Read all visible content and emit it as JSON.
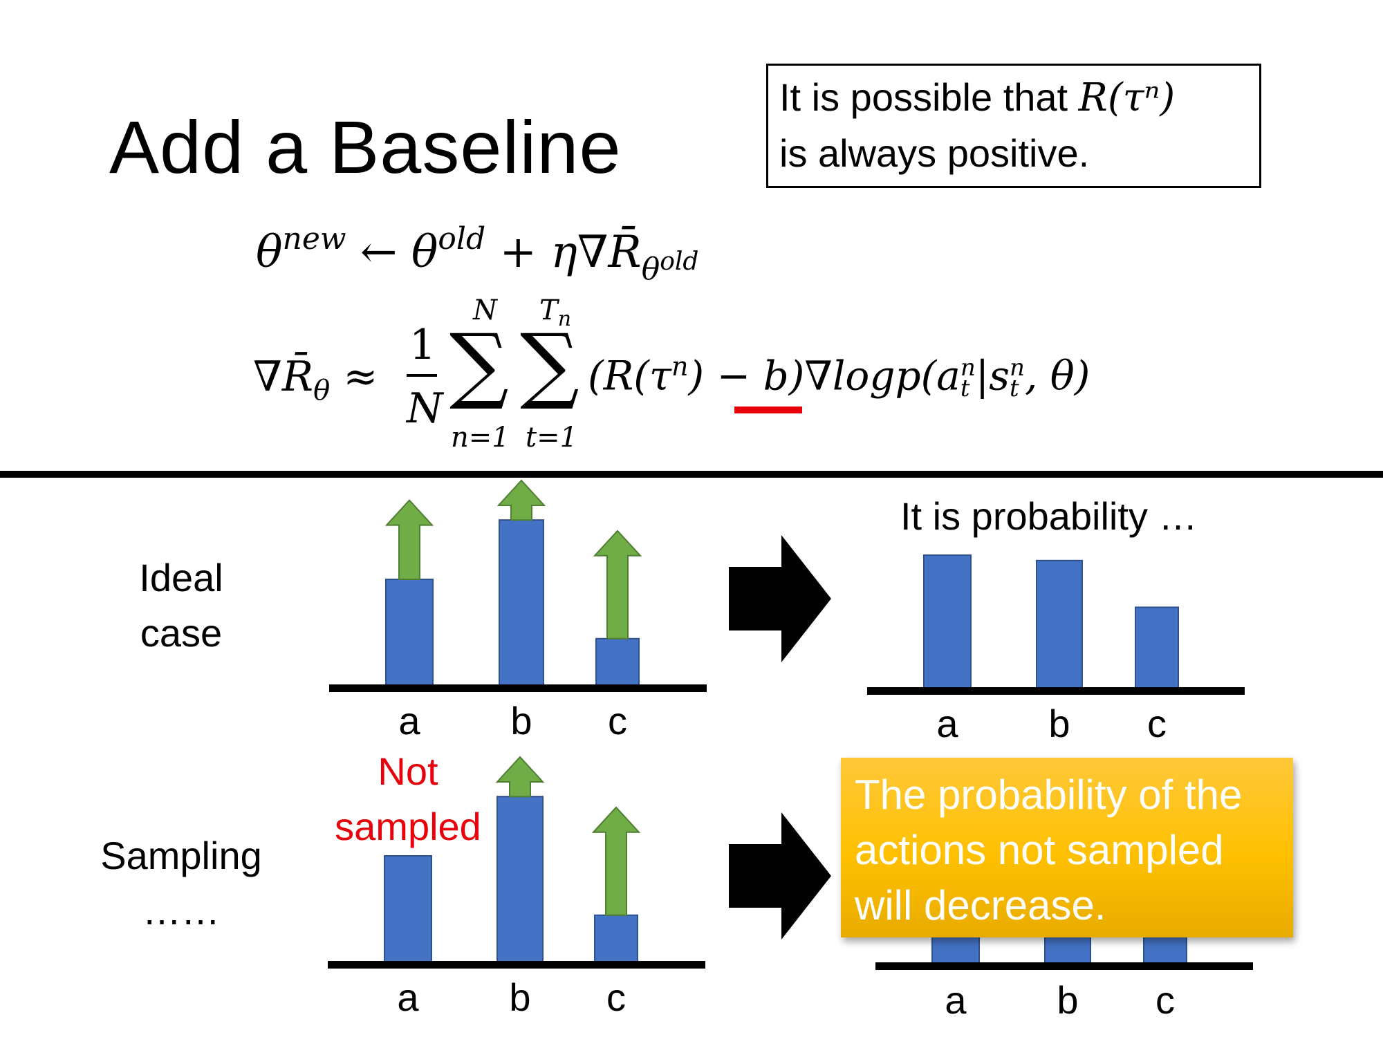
{
  "slide": {
    "title": "Add a Baseline",
    "note_line1": "It is possible that ",
    "note_math": "R(τⁿ)",
    "note_line2": "is always positive.",
    "eq1": {
      "lhs": "θ",
      "lhs_sup": "new",
      "arrow": " ← θ",
      "old_sup": "old",
      "rhs": " + η∇R̄",
      "rhs_sub": "θ",
      "rhs_sub_sup": "old"
    },
    "eq2": {
      "lhs": "∇R̄",
      "lhs_sub": "θ",
      "approx": "≈",
      "frac_num": "1",
      "frac_den": "N",
      "sum1_top": "N",
      "sum1_bottom": "n=1",
      "sum2_top": "T",
      "sum2_top_sub": "n",
      "sum2_bottom": "t=1",
      "sigma": "∑",
      "body_pre": "(R(τ",
      "body_sup": "n",
      "body_mid": ") ",
      "minus_b": "− b",
      "body_post": ")∇logp(a",
      "a_sub": "t",
      "a_sup": "n",
      "bar": "|s",
      "s_sub": "t",
      "s_sup": "n",
      "tail": ", θ)"
    },
    "ideal_label_1": "Ideal",
    "ideal_label_2": "case",
    "sampling_label_1": "Sampling",
    "sampling_label_2": "……",
    "prob_caption": "It is probability …",
    "not_sampled_1": "Not",
    "not_sampled_2": "sampled",
    "callout": "The probability of the actions not sampled will decrease."
  },
  "colors": {
    "bar": "#4472c4",
    "arrow": "#70ad47",
    "highlight": "#e8000b",
    "callout": "#ffc000"
  },
  "chart_data": [
    {
      "type": "bar",
      "name": "ideal-before",
      "categories": [
        "a",
        "b",
        "c"
      ],
      "values": [
        0.6,
        0.93,
        0.27
      ],
      "update": [
        0.44,
        0.22,
        0.6
      ]
    },
    {
      "type": "bar",
      "name": "ideal-after",
      "categories": [
        "a",
        "b",
        "c"
      ],
      "values": [
        0.75,
        0.72,
        0.46
      ]
    },
    {
      "type": "bar",
      "name": "sampling-before",
      "categories": [
        "a",
        "b",
        "c"
      ],
      "values": [
        0.6,
        0.93,
        0.27
      ],
      "update": [
        0,
        0.22,
        0.6
      ]
    },
    {
      "type": "bar",
      "name": "sampling-after",
      "categories": [
        "a",
        "b",
        "c"
      ]
    }
  ]
}
